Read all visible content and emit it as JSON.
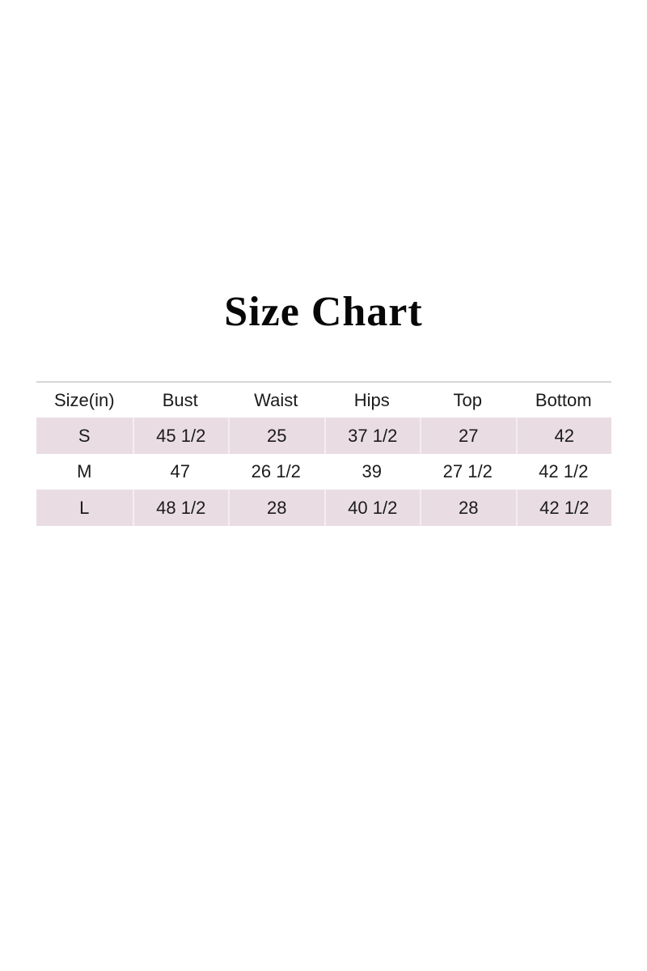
{
  "page": {
    "title": "Size Chart",
    "background": "#ffffff"
  },
  "colors": {
    "row_shade": "#e9dde3",
    "cell_divider": "#f4edf0",
    "table_top_line": "#dad5d7",
    "text": "#1b1b1b"
  },
  "table": {
    "columns": [
      "Size(in)",
      "Bust",
      "Waist",
      "Hips",
      "Top",
      "Bottom"
    ],
    "rows": [
      {
        "cells": [
          "S",
          "45 1/2",
          "25",
          "37 1/2",
          "27",
          "42"
        ]
      },
      {
        "cells": [
          "M",
          "47",
          "26 1/2",
          "39",
          "27 1/2",
          "42 1/2"
        ]
      },
      {
        "cells": [
          "L",
          "48 1/2",
          "28",
          "40 1/2",
          "28",
          "42 1/2"
        ]
      }
    ]
  },
  "chart_data": {
    "type": "table",
    "title": "Size Chart",
    "columns": [
      "Size(in)",
      "Bust",
      "Waist",
      "Hips",
      "Top",
      "Bottom"
    ],
    "rows": [
      [
        "S",
        "45 1/2",
        "25",
        "37 1/2",
        "27",
        "42"
      ],
      [
        "M",
        "47",
        "26 1/2",
        "39",
        "27 1/2",
        "42 1/2"
      ],
      [
        "L",
        "48 1/2",
        "28",
        "40 1/2",
        "28",
        "42 1/2"
      ]
    ],
    "layout": {
      "shaded_row_indexes": [
        0,
        2
      ],
      "header_background": "#ffffff",
      "shaded_row_background": "#e9dde3",
      "grid": "horizontal-top-rule-only"
    }
  }
}
